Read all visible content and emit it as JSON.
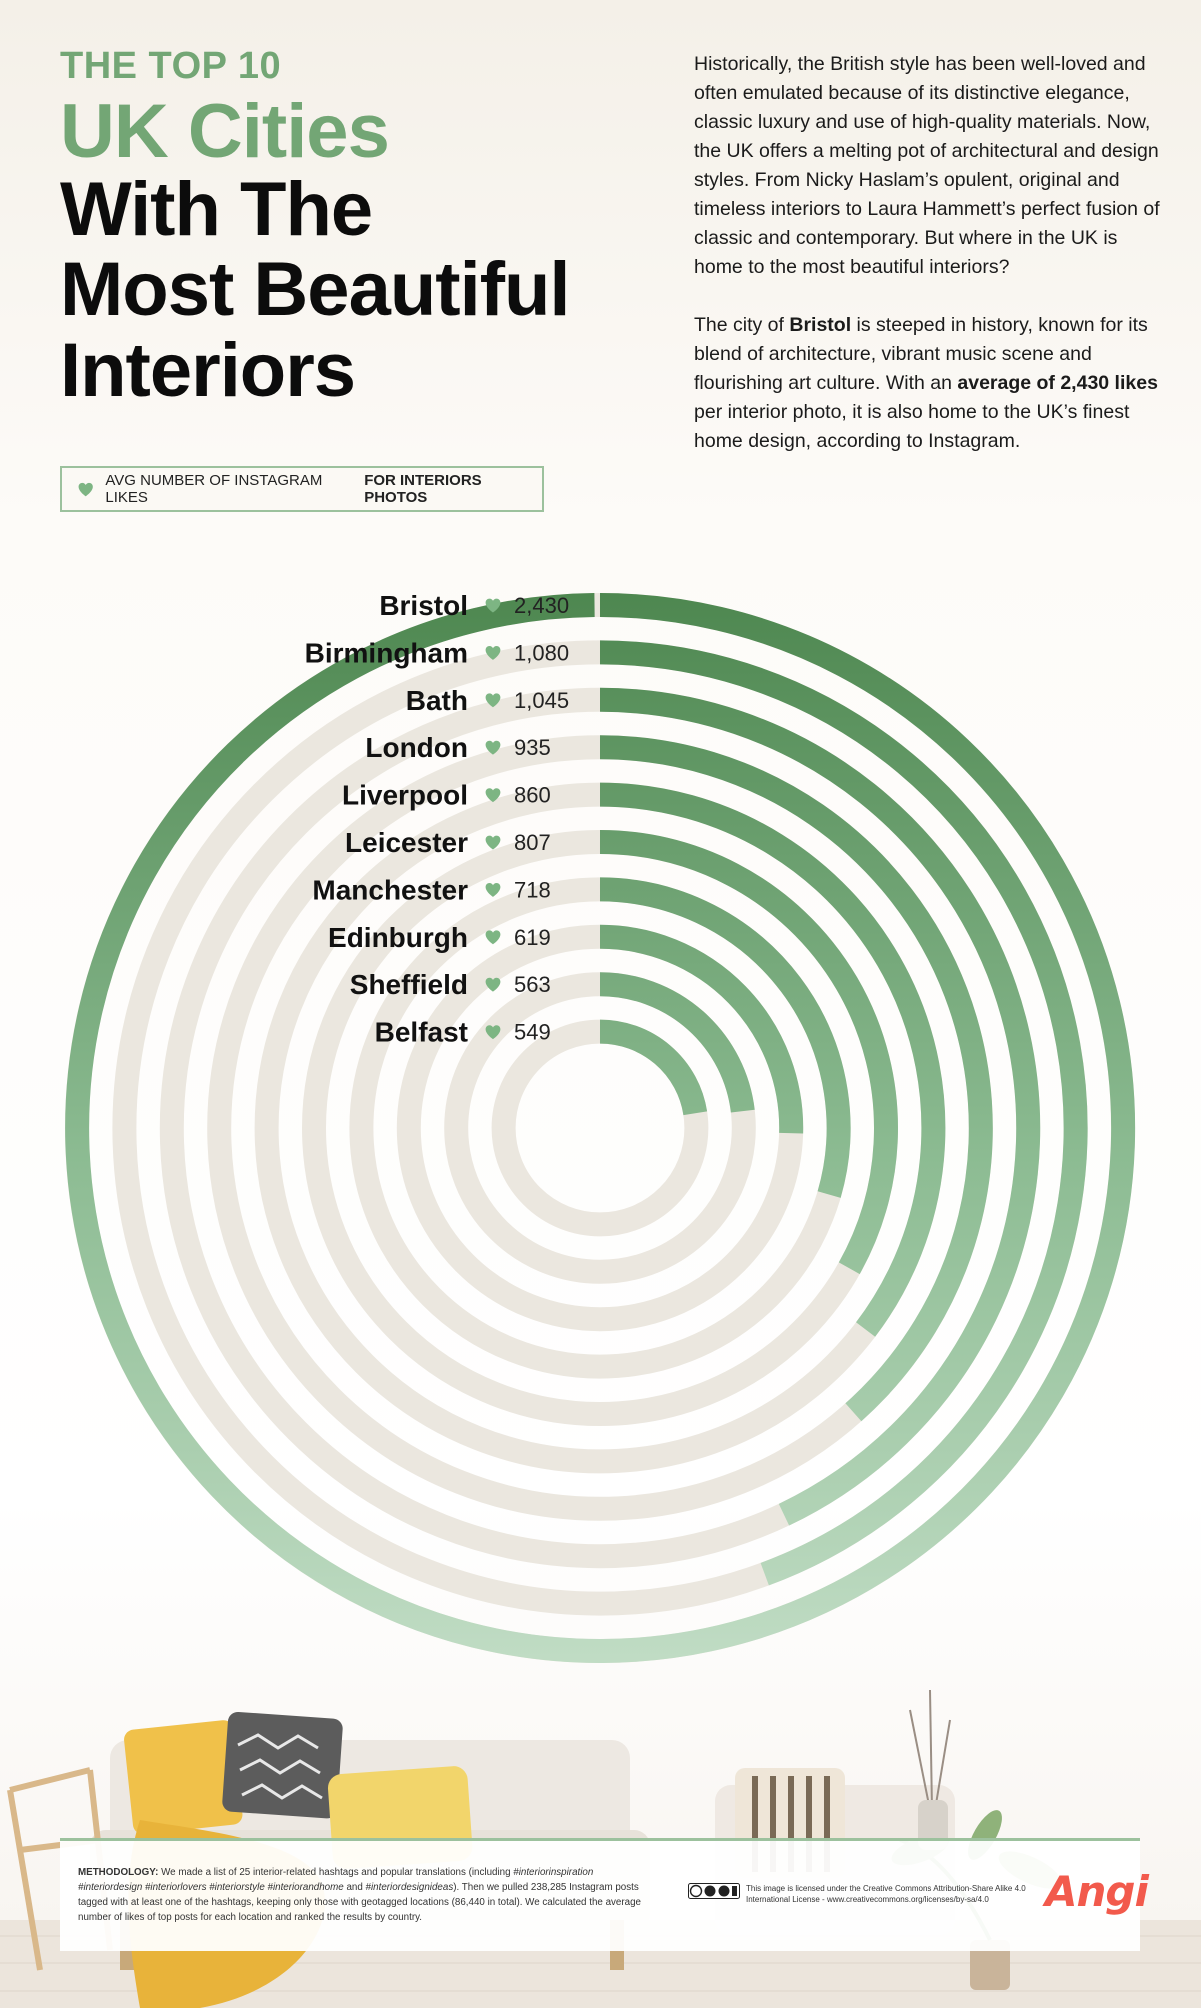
{
  "title": {
    "line1": "THE TOP 10",
    "line2": "UK Cities",
    "line3": "With The",
    "line4": "Most Beautiful",
    "line5": "Interiors"
  },
  "legend": {
    "label_regular": "AVG NUMBER OF INSTAGRAM LIKES",
    "label_bold": "FOR INTERIORS PHOTOS"
  },
  "intro": {
    "p1": "Historically, the British style has been well-loved and often emulated because of its distinctive elegance, classic luxury and use of high-quality materials. Now, the UK offers a melting pot of architectural and design styles. From Nicky Haslam’s opulent, original and timeless interiors to Laura Hammett’s perfect fusion of classic and contemporary. But where in the UK is home to the most beautiful interiors?",
    "p2_a": "The city of ",
    "p2_b": "Bristol",
    "p2_c": " is steeped in history, known for its blend of architecture, vibrant music scene and flourishing art culture. With an ",
    "p2_d": "average of 2,430 likes",
    "p2_e": " per interior photo, it is also home to the UK’s finest home design, according to Instagram."
  },
  "chart_data": {
    "type": "radial-bar",
    "title": "",
    "xlabel": "",
    "ylabel": "",
    "unit": "avg Instagram likes per interior photo",
    "categories": [
      "Bristol",
      "Birmingham",
      "Bath",
      "London",
      "Liverpool",
      "Leicester",
      "Manchester",
      "Edinburgh",
      "Sheffield",
      "Belfast"
    ],
    "values": [
      2430,
      1080,
      1045,
      935,
      860,
      807,
      718,
      619,
      563,
      549
    ],
    "value_labels": [
      "2,430",
      "1,080",
      "1,045",
      "935",
      "860",
      "807",
      "718",
      "619",
      "563",
      "549"
    ],
    "scale_max": 2430,
    "colors": {
      "track": "#ebe7df",
      "bar_dark": "#4a844c",
      "bar_light": "#c0dcc4",
      "heart": "#7db583"
    },
    "legend_position": "top-left"
  },
  "methodology": {
    "label": "METHODOLOGY:",
    "text_a": " We made a list of 25 interior-related hashtags and popular translations (including ",
    "tags": "#interiorinspiration #interiordesign #interiorlovers #interiorstyle #interiorandhome",
    "text_b": " and ",
    "tag_last": "#interiordesignideas",
    "text_c": "). Then we pulled 238,285 Instagram posts tagged with at least one of the hashtags, keeping only those with geotagged locations (86,440 in total). We calculated the average number of likes of top posts for each location and ranked the results by country."
  },
  "license": {
    "text": "This image is licensed under the Creative Commons Attribution-Share Alike 4.0 International License - www.creativecommons.org/licenses/by-sa/4.0"
  },
  "brand": {
    "name": "Angi"
  },
  "icons": {
    "legend": "heart-icon",
    "rows": "heart-icon",
    "license": "cc-by-sa-icon"
  }
}
